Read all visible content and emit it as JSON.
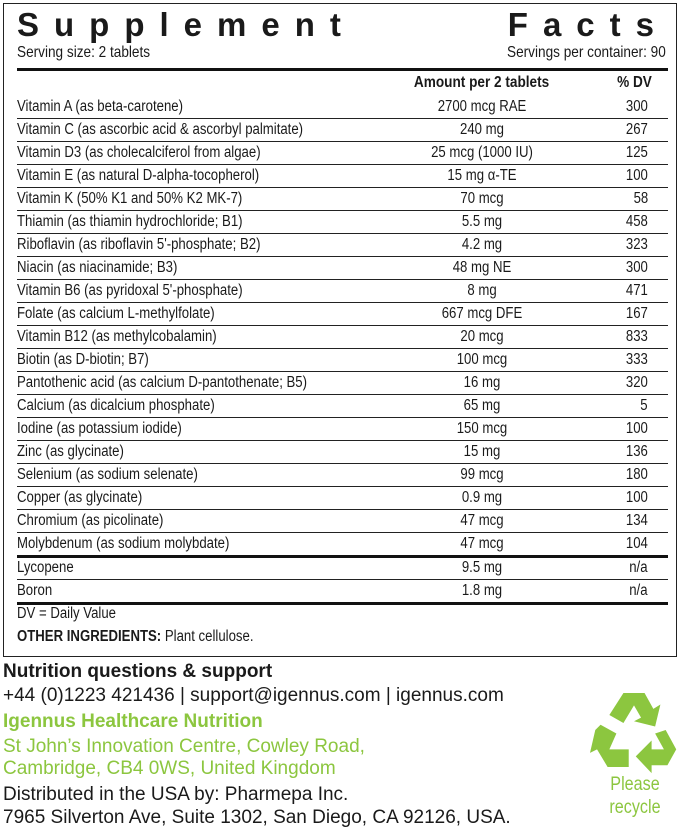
{
  "title": [
    "Supplement",
    "Facts"
  ],
  "serving_size": "Serving size: 2 tablets",
  "servings_per_container": "Servings per container: 90",
  "headers": {
    "amount": "Amount per 2 tablets",
    "dv": "% DV"
  },
  "rows": [
    {
      "name": "Vitamin A (as beta-carotene)",
      "amount": "2700 mcg RAE",
      "dv": "300"
    },
    {
      "name": "Vitamin C (as ascorbic acid & ascorbyl palmitate)",
      "amount": "240 mg",
      "dv": "267"
    },
    {
      "name": "Vitamin D3 (as cholecalciferol from algae)",
      "amount": "25 mcg (1000 IU)",
      "dv": "125"
    },
    {
      "name": "Vitamin E (as natural D-alpha-tocopherol)",
      "amount": "15 mg α-TE",
      "dv": "100"
    },
    {
      "name": "Vitamin K (50% K1 and 50% K2 MK-7)",
      "amount": "70 mcg",
      "dv": "58"
    },
    {
      "name": "Thiamin (as thiamin hydrochloride; B1)",
      "amount": "5.5 mg",
      "dv": "458"
    },
    {
      "name": "Riboflavin (as riboflavin 5'-phosphate; B2)",
      "amount": "4.2 mg",
      "dv": "323"
    },
    {
      "name": "Niacin (as niacinamide; B3)",
      "amount": "48 mg NE",
      "dv": "300"
    },
    {
      "name": "Vitamin B6 (as pyridoxal 5'-phosphate)",
      "amount": "8 mg",
      "dv": "471"
    },
    {
      "name": "Folate (as calcium L-methylfolate)",
      "amount": "667 mcg DFE",
      "dv": "167"
    },
    {
      "name": "Vitamin B12 (as methylcobalamin)",
      "amount": "20 mcg",
      "dv": "833"
    },
    {
      "name": "Biotin (as D-biotin; B7)",
      "amount": "100 mcg",
      "dv": "333"
    },
    {
      "name": "Pantothenic acid (as calcium D-pantothenate; B5)",
      "amount": "16 mg",
      "dv": "320"
    },
    {
      "name": "Calcium (as dicalcium phosphate)",
      "amount": "65 mg",
      "dv": "5"
    },
    {
      "name": "Iodine (as potassium iodide)",
      "amount": "150 mcg",
      "dv": "100"
    },
    {
      "name": "Zinc (as glycinate)",
      "amount": "15 mg",
      "dv": "136"
    },
    {
      "name": "Selenium (as sodium selenate)",
      "amount": "99 mcg",
      "dv": "180"
    },
    {
      "name": "Copper (as glycinate)",
      "amount": "0.9 mg",
      "dv": "100"
    },
    {
      "name": "Chromium (as picolinate)",
      "amount": "47 mcg",
      "dv": "134"
    },
    {
      "name": "Molybdenum (as sodium molybdate)",
      "amount": "47 mcg",
      "dv": "104"
    }
  ],
  "extra_rows": [
    {
      "name": "Lycopene",
      "amount": "9.5 mg",
      "dv": "n/a"
    },
    {
      "name": "Boron",
      "amount": "1.8 mg",
      "dv": "n/a"
    }
  ],
  "dv_note": "DV = Daily Value",
  "other_label": "OTHER INGREDIENTS:",
  "other_value": " Plant cellulose.",
  "support_title": "Nutrition questions & support",
  "support_contact": "+44 (0)1223 421436 | support@igennus.com | igennus.com",
  "company": "Igennus Healthcare Nutrition",
  "address1": "St John’s Innovation Centre, Cowley Road,",
  "address2": "Cambridge, CB4 0WS, United Kingdom",
  "distributor1": "Distributed in the USA by: Pharmepa Inc.",
  "distributor2": "7965 Silverton Ave, Suite 1302, San Diego, CA 92126, USA.",
  "recycle_label": "Please recycle",
  "colors": {
    "green": "#8cc63f"
  },
  "icons": [
    "recycle-icon"
  ]
}
